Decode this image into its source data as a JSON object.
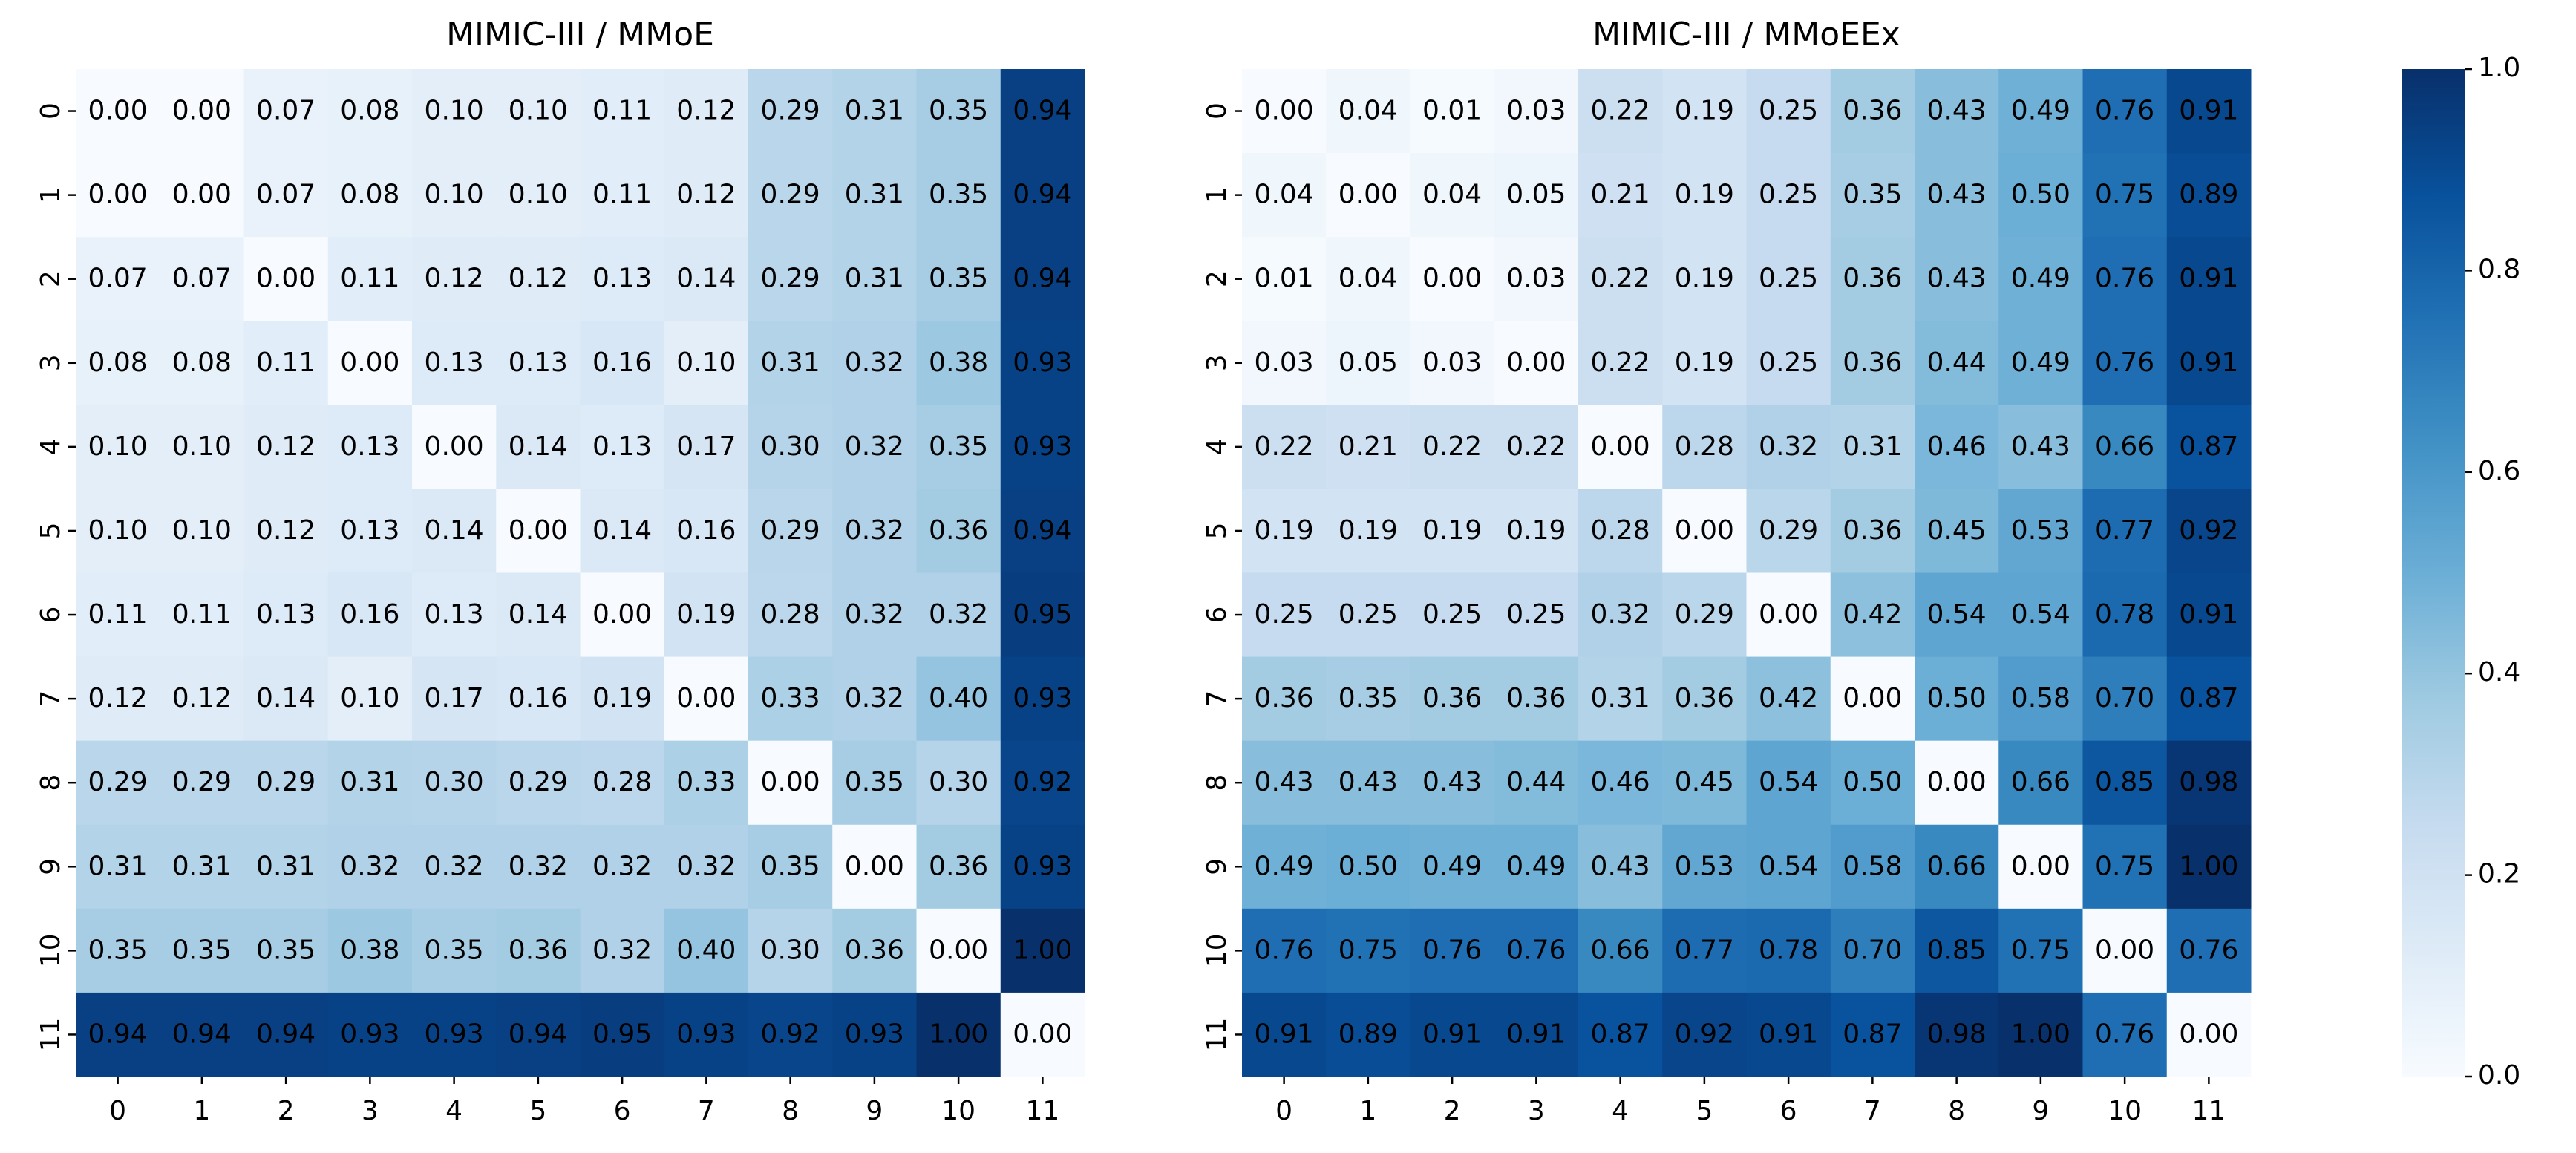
{
  "chart_data": [
    {
      "type": "heatmap",
      "title": "MIMIC-III / MMoE",
      "categories": [
        "0",
        "1",
        "2",
        "3",
        "4",
        "5",
        "6",
        "7",
        "8",
        "9",
        "10",
        "11"
      ],
      "values": [
        [
          0.0,
          0.0,
          0.07,
          0.08,
          0.1,
          0.1,
          0.11,
          0.12,
          0.29,
          0.31,
          0.35,
          0.94
        ],
        [
          0.0,
          0.0,
          0.07,
          0.08,
          0.1,
          0.1,
          0.11,
          0.12,
          0.29,
          0.31,
          0.35,
          0.94
        ],
        [
          0.07,
          0.07,
          0.0,
          0.11,
          0.12,
          0.12,
          0.13,
          0.14,
          0.29,
          0.31,
          0.35,
          0.94
        ],
        [
          0.08,
          0.08,
          0.11,
          0.0,
          0.13,
          0.13,
          0.16,
          0.1,
          0.31,
          0.32,
          0.38,
          0.93
        ],
        [
          0.1,
          0.1,
          0.12,
          0.13,
          0.0,
          0.14,
          0.13,
          0.17,
          0.3,
          0.32,
          0.35,
          0.93
        ],
        [
          0.1,
          0.1,
          0.12,
          0.13,
          0.14,
          0.0,
          0.14,
          0.16,
          0.29,
          0.32,
          0.36,
          0.94
        ],
        [
          0.11,
          0.11,
          0.13,
          0.16,
          0.13,
          0.14,
          0.0,
          0.19,
          0.28,
          0.32,
          0.32,
          0.95
        ],
        [
          0.12,
          0.12,
          0.14,
          0.1,
          0.17,
          0.16,
          0.19,
          0.0,
          0.33,
          0.32,
          0.4,
          0.93
        ],
        [
          0.29,
          0.29,
          0.29,
          0.31,
          0.3,
          0.29,
          0.28,
          0.33,
          0.0,
          0.35,
          0.3,
          0.92
        ],
        [
          0.31,
          0.31,
          0.31,
          0.32,
          0.32,
          0.32,
          0.32,
          0.32,
          0.35,
          0.0,
          0.36,
          0.93
        ],
        [
          0.35,
          0.35,
          0.35,
          0.38,
          0.35,
          0.36,
          0.32,
          0.4,
          0.3,
          0.36,
          0.0,
          1.0
        ],
        [
          0.94,
          0.94,
          0.94,
          0.93,
          0.93,
          0.94,
          0.95,
          0.93,
          0.92,
          0.93,
          1.0,
          0.0
        ]
      ],
      "value_labels": [
        [
          "0.00",
          "0.00",
          "0.07",
          "0.08",
          "0.10",
          "0.10",
          "0.11",
          "0.12",
          "0.29",
          "0.31",
          "0.35",
          "0.94"
        ],
        [
          "0.00",
          "0.00",
          "0.07",
          "0.08",
          "0.10",
          "0.10",
          "0.11",
          "0.12",
          "0.29",
          "0.31",
          "0.35",
          "0.94"
        ],
        [
          "0.07",
          "0.07",
          "0.00",
          "0.11",
          "0.12",
          "0.12",
          "0.13",
          "0.14",
          "0.29",
          "0.31",
          "0.35",
          "0.94"
        ],
        [
          "0.08",
          "0.08",
          "0.11",
          "0.00",
          "0.13",
          "0.13",
          "0.16",
          "0.10",
          "0.31",
          "0.32",
          "0.38",
          "0.93"
        ],
        [
          "0.10",
          "0.10",
          "0.12",
          "0.13",
          "0.00",
          "0.14",
          "0.13",
          "0.17",
          "0.30",
          "0.32",
          "0.35",
          "0.93"
        ],
        [
          "0.10",
          "0.10",
          "0.12",
          "0.13",
          "0.14",
          "0.00",
          "0.14",
          "0.16",
          "0.29",
          "0.32",
          "0.36",
          "0.94"
        ],
        [
          "0.11",
          "0.11",
          "0.13",
          "0.16",
          "0.13",
          "0.14",
          "0.00",
          "0.19",
          "0.28",
          "0.32",
          "0.32",
          "0.95"
        ],
        [
          "0.12",
          "0.12",
          "0.14",
          "0.10",
          "0.17",
          "0.16",
          "0.19",
          "0.00",
          "0.33",
          "0.32",
          "0.40",
          "0.93"
        ],
        [
          "0.29",
          "0.29",
          "0.29",
          "0.31",
          "0.30",
          "0.29",
          "0.28",
          "0.33",
          "0.00",
          "0.35",
          "0.30",
          "0.92"
        ],
        [
          "0.31",
          "0.31",
          "0.31",
          "0.32",
          "0.32",
          "0.32",
          "0.32",
          "0.32",
          "0.35",
          "0.00",
          "0.36",
          "0.93"
        ],
        [
          "0.35",
          "0.35",
          "0.35",
          "0.38",
          "0.35",
          "0.36",
          "0.32",
          "0.40",
          "0.30",
          "0.36",
          "0.00",
          "1.00"
        ],
        [
          "0.94",
          "0.94",
          "0.94",
          "0.93",
          "0.93",
          "0.94",
          "0.95",
          "0.93",
          "0.92",
          "0.93",
          "1.00",
          "0.00"
        ]
      ]
    },
    {
      "type": "heatmap",
      "title": "MIMIC-III / MMoEEx",
      "categories": [
        "0",
        "1",
        "2",
        "3",
        "4",
        "5",
        "6",
        "7",
        "8",
        "9",
        "10",
        "11"
      ],
      "values": [
        [
          0.0,
          0.04,
          0.01,
          0.03,
          0.22,
          0.19,
          0.25,
          0.36,
          0.43,
          0.49,
          0.76,
          0.91
        ],
        [
          0.04,
          0.0,
          0.04,
          0.05,
          0.21,
          0.19,
          0.25,
          0.35,
          0.43,
          0.5,
          0.75,
          0.89
        ],
        [
          0.01,
          0.04,
          0.0,
          0.03,
          0.22,
          0.19,
          0.25,
          0.36,
          0.43,
          0.49,
          0.76,
          0.91
        ],
        [
          0.03,
          0.05,
          0.03,
          0.0,
          0.22,
          0.19,
          0.25,
          0.36,
          0.44,
          0.49,
          0.76,
          0.91
        ],
        [
          0.22,
          0.21,
          0.22,
          0.22,
          0.0,
          0.28,
          0.32,
          0.31,
          0.46,
          0.43,
          0.66,
          0.87
        ],
        [
          0.19,
          0.19,
          0.19,
          0.19,
          0.28,
          0.0,
          0.29,
          0.36,
          0.45,
          0.53,
          0.77,
          0.92
        ],
        [
          0.25,
          0.25,
          0.25,
          0.25,
          0.32,
          0.29,
          0.0,
          0.42,
          0.54,
          0.54,
          0.78,
          0.91
        ],
        [
          0.36,
          0.35,
          0.36,
          0.36,
          0.31,
          0.36,
          0.42,
          0.0,
          0.5,
          0.58,
          0.7,
          0.87
        ],
        [
          0.43,
          0.43,
          0.43,
          0.44,
          0.46,
          0.45,
          0.54,
          0.5,
          0.0,
          0.66,
          0.85,
          0.98
        ],
        [
          0.49,
          0.5,
          0.49,
          0.49,
          0.43,
          0.53,
          0.54,
          0.58,
          0.66,
          0.0,
          0.75,
          1.0
        ],
        [
          0.76,
          0.75,
          0.76,
          0.76,
          0.66,
          0.77,
          0.78,
          0.7,
          0.85,
          0.75,
          0.0,
          0.76
        ],
        [
          0.91,
          0.89,
          0.91,
          0.91,
          0.87,
          0.92,
          0.91,
          0.87,
          0.98,
          1.0,
          0.76,
          0.0
        ]
      ],
      "value_labels": [
        [
          "0.00",
          "0.04",
          "0.01",
          "0.03",
          "0.22",
          "0.19",
          "0.25",
          "0.36",
          "0.43",
          "0.49",
          "0.76",
          "0.91"
        ],
        [
          "0.04",
          "0.00",
          "0.04",
          "0.05",
          "0.21",
          "0.19",
          "0.25",
          "0.35",
          "0.43",
          "0.50",
          "0.75",
          "0.89"
        ],
        [
          "0.01",
          "0.04",
          "0.00",
          "0.03",
          "0.22",
          "0.19",
          "0.25",
          "0.36",
          "0.43",
          "0.49",
          "0.76",
          "0.91"
        ],
        [
          "0.03",
          "0.05",
          "0.03",
          "0.00",
          "0.22",
          "0.19",
          "0.25",
          "0.36",
          "0.44",
          "0.49",
          "0.76",
          "0.91"
        ],
        [
          "0.22",
          "0.21",
          "0.22",
          "0.22",
          "0.00",
          "0.28",
          "0.32",
          "0.31",
          "0.46",
          "0.43",
          "0.66",
          "0.87"
        ],
        [
          "0.19",
          "0.19",
          "0.19",
          "0.19",
          "0.28",
          "0.00",
          "0.29",
          "0.36",
          "0.45",
          "0.53",
          "0.77",
          "0.92"
        ],
        [
          "0.25",
          "0.25",
          "0.25",
          "0.25",
          "0.32",
          "0.29",
          "0.00",
          "0.42",
          "0.54",
          "0.54",
          "0.78",
          "0.91"
        ],
        [
          "0.36",
          "0.35",
          "0.36",
          "0.36",
          "0.31",
          "0.36",
          "0.42",
          "0.00",
          "0.50",
          "0.58",
          "0.70",
          "0.87"
        ],
        [
          "0.43",
          "0.43",
          "0.43",
          "0.44",
          "0.46",
          "0.45",
          "0.54",
          "0.50",
          "0.00",
          "0.66",
          "0.85",
          "0.98"
        ],
        [
          "0.49",
          "0.50",
          "0.49",
          "0.49",
          "0.43",
          "0.53",
          "0.54",
          "0.58",
          "0.66",
          "0.00",
          "0.75",
          "1.00"
        ],
        [
          "0.76",
          "0.75",
          "0.76",
          "0.76",
          "0.66",
          "0.77",
          "0.78",
          "0.70",
          "0.85",
          "0.75",
          "0.00",
          "0.76"
        ],
        [
          "0.91",
          "0.89",
          "0.91",
          "0.91",
          "0.87",
          "0.92",
          "0.91",
          "0.87",
          "0.98",
          "1.00",
          "0.76",
          "0.00"
        ]
      ]
    }
  ],
  "colorbar": {
    "lim": [
      0,
      1
    ],
    "ticks": [
      {
        "value": 0,
        "label": "0.0"
      },
      {
        "value": 0.2,
        "label": "0.2"
      },
      {
        "value": 0.4,
        "label": "0.4"
      },
      {
        "value": 0.6,
        "label": "0.6"
      },
      {
        "value": 0.8,
        "label": "0.8"
      },
      {
        "value": 1,
        "label": "1.0"
      }
    ],
    "cmap": [
      "#f7fbff",
      "#deebf7",
      "#c6dbef",
      "#9ecae1",
      "#6baed6",
      "#4292c6",
      "#2171b5",
      "#08519c",
      "#08306b"
    ]
  }
}
